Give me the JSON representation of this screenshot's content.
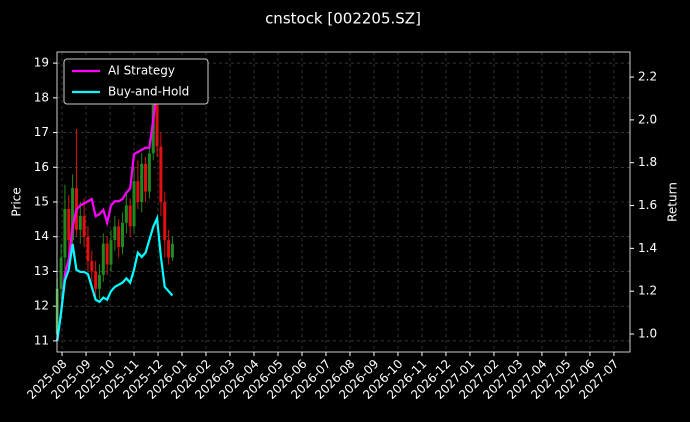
{
  "chart_data": {
    "type": "candlestick",
    "title": "cnstock [002205.SZ]",
    "ylabel": "Price",
    "y2label": "Return",
    "x": [
      -0.2,
      -0.04,
      0.12,
      0.28,
      0.44,
      0.6,
      0.76,
      0.92,
      1.08,
      1.24,
      1.4,
      1.56,
      1.72,
      1.88,
      2.04,
      2.2,
      2.36,
      2.52,
      2.68,
      2.84,
      3.0,
      3.16,
      3.32,
      3.48,
      3.64,
      3.8,
      3.96,
      4.12,
      4.28,
      4.44,
      4.6
    ],
    "open": [
      11.2,
      12.5,
      13.4,
      14.8,
      13.9,
      15.4,
      14.2,
      14.6,
      14.0,
      13.3,
      13.0,
      12.5,
      12.9,
      13.8,
      13.2,
      13.9,
      14.3,
      13.7,
      14.4,
      14.9,
      14.3,
      15.6,
      15.0,
      16.1,
      15.3,
      16.4,
      17.8,
      16.6,
      15.0,
      13.9,
      13.4
    ],
    "high": [
      12.8,
      13.8,
      15.5,
      15.2,
      15.8,
      17.1,
      15.0,
      15.1,
      14.3,
      13.6,
      13.3,
      13.2,
      14.1,
      14.0,
      14.2,
      14.6,
      14.5,
      14.7,
      15.3,
      15.1,
      16.0,
      16.2,
      16.4,
      16.3,
      16.8,
      18.3,
      18.7,
      17.0,
      15.3,
      14.2,
      14.0
    ],
    "low": [
      11.0,
      12.2,
      13.0,
      13.5,
      13.6,
      14.0,
      13.8,
      13.7,
      13.0,
      12.7,
      12.2,
      12.2,
      12.7,
      12.9,
      13.0,
      13.6,
      13.4,
      13.5,
      14.1,
      14.0,
      14.1,
      14.8,
      14.7,
      15.0,
      15.1,
      16.2,
      16.3,
      14.6,
      13.4,
      13.2,
      13.3
    ],
    "close": [
      12.5,
      13.4,
      14.8,
      13.9,
      15.4,
      14.2,
      14.6,
      14.0,
      13.3,
      13.0,
      12.5,
      12.9,
      13.8,
      13.2,
      13.9,
      14.3,
      13.7,
      14.4,
      14.9,
      14.3,
      15.6,
      15.0,
      16.1,
      15.3,
      16.4,
      17.8,
      16.6,
      15.0,
      13.9,
      13.4,
      13.8
    ],
    "up_color": "#1f8a1f",
    "down_color": "#e01010",
    "series": [
      {
        "name": "AI Strategy",
        "color": "#ff00ff",
        "axis": "y2",
        "values": [
          0.97,
          1.1,
          1.28,
          1.35,
          1.5,
          1.58,
          1.6,
          1.61,
          1.62,
          1.63,
          1.55,
          1.56,
          1.58,
          1.52,
          1.6,
          1.62,
          1.62,
          1.63,
          1.66,
          1.68,
          1.84,
          1.85,
          1.86,
          1.87,
          1.87,
          2.0,
          2.15,
          2.19,
          2.1,
          2.08,
          2.09
        ]
      },
      {
        "name": "Buy-and-Hold",
        "color": "#00ffff",
        "axis": "y2",
        "values": [
          0.97,
          1.1,
          1.25,
          1.3,
          1.42,
          1.3,
          1.29,
          1.29,
          1.28,
          1.22,
          1.16,
          1.15,
          1.17,
          1.16,
          1.2,
          1.22,
          1.23,
          1.24,
          1.26,
          1.24,
          1.3,
          1.38,
          1.36,
          1.38,
          1.44,
          1.5,
          1.54,
          1.36,
          1.22,
          1.2,
          1.18
        ]
      }
    ],
    "xlim": [
      -0.21,
      23.67
    ],
    "xticks": [
      {
        "value": 0,
        "label": "2025-08"
      },
      {
        "value": 1,
        "label": "2025-09"
      },
      {
        "value": 2,
        "label": "2025-10"
      },
      {
        "value": 3,
        "label": "2025-11"
      },
      {
        "value": 4,
        "label": "2025-12"
      },
      {
        "value": 5,
        "label": "2026-01"
      },
      {
        "value": 6,
        "label": "2026-02"
      },
      {
        "value": 7,
        "label": "2026-03"
      },
      {
        "value": 8,
        "label": "2026-04"
      },
      {
        "value": 9,
        "label": "2026-05"
      },
      {
        "value": 10,
        "label": "2026-06"
      },
      {
        "value": 11,
        "label": "2026-07"
      },
      {
        "value": 12,
        "label": "2026-08"
      },
      {
        "value": 13,
        "label": "2026-09"
      },
      {
        "value": 14,
        "label": "2026-10"
      },
      {
        "value": 15,
        "label": "2026-11"
      },
      {
        "value": 16,
        "label": "2026-12"
      },
      {
        "value": 17,
        "label": "2027-01"
      },
      {
        "value": 18,
        "label": "2027-02"
      },
      {
        "value": 19,
        "label": "2027-03"
      },
      {
        "value": 20,
        "label": "2027-04"
      },
      {
        "value": 21,
        "label": "2027-05"
      },
      {
        "value": 22,
        "label": "2027-06"
      },
      {
        "value": 23,
        "label": "2027-07"
      }
    ],
    "ylim": [
      10.68,
      19.32
    ],
    "yticks": [
      11,
      12,
      13,
      14,
      15,
      16,
      17,
      18,
      19
    ],
    "y2lim": [
      0.916,
      2.317
    ],
    "y2ticks": [
      {
        "value": 1,
        "label": "1.0"
      },
      1.2,
      1.4,
      1.6,
      1.8,
      {
        "value": 2,
        "label": "2.0"
      },
      2.2
    ],
    "grid": true,
    "legend": "upper left"
  }
}
